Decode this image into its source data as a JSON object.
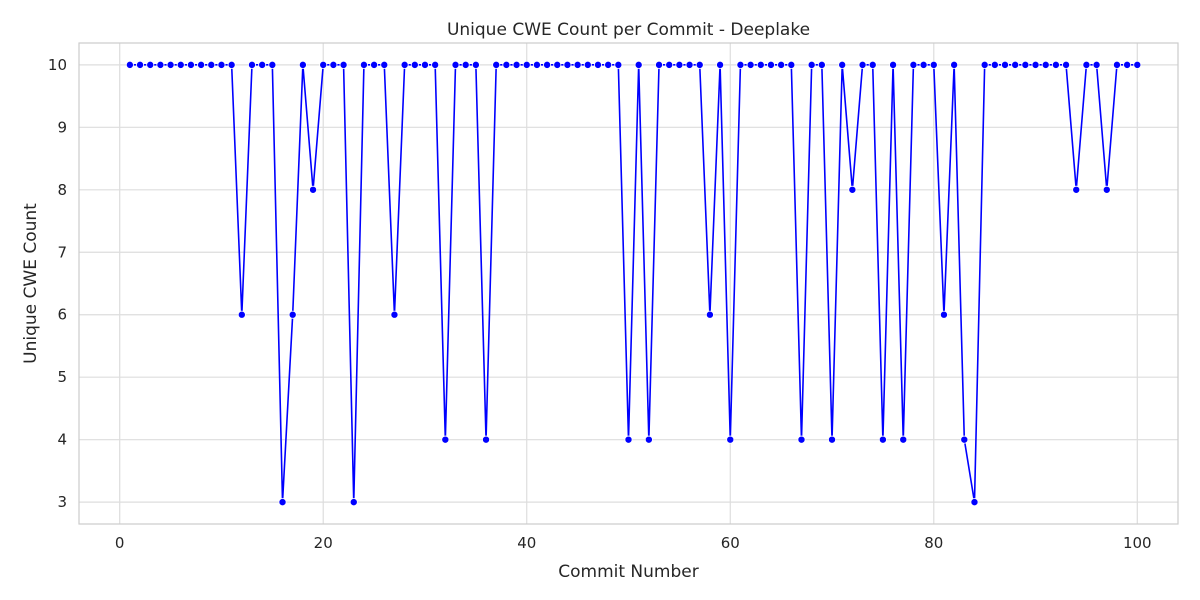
{
  "chart_data": {
    "type": "line",
    "title": "Unique CWE Count per Commit - Deeplake",
    "xlabel": "Commit Number",
    "ylabel": "Unique CWE Count",
    "xlim": [
      -4,
      104
    ],
    "ylim": [
      2.65,
      10.35
    ],
    "xticks": [
      0,
      20,
      40,
      60,
      80,
      100
    ],
    "yticks": [
      3,
      4,
      5,
      6,
      7,
      8,
      9,
      10
    ],
    "grid": true,
    "legend": "none",
    "series": [
      {
        "color": "#0000ff",
        "marker": "circle",
        "x": [
          1,
          2,
          3,
          4,
          5,
          6,
          7,
          8,
          9,
          10,
          11,
          12,
          13,
          14,
          15,
          16,
          17,
          18,
          19,
          20,
          21,
          22,
          23,
          24,
          25,
          26,
          27,
          28,
          29,
          30,
          31,
          32,
          33,
          34,
          35,
          36,
          37,
          38,
          39,
          40,
          41,
          42,
          43,
          44,
          45,
          46,
          47,
          48,
          49,
          50,
          51,
          52,
          53,
          54,
          55,
          56,
          57,
          58,
          59,
          60,
          61,
          62,
          63,
          64,
          65,
          66,
          67,
          68,
          69,
          70,
          71,
          72,
          73,
          74,
          75,
          76,
          77,
          78,
          79,
          80,
          81,
          82,
          83,
          84,
          85,
          86,
          87,
          88,
          89,
          90,
          91,
          92,
          93,
          94,
          95,
          96,
          97,
          98,
          99,
          100
        ],
        "y": [
          10,
          10,
          10,
          10,
          10,
          10,
          10,
          10,
          10,
          10,
          10,
          6,
          10,
          10,
          10,
          3,
          6,
          10,
          8,
          10,
          10,
          10,
          3,
          10,
          10,
          10,
          6,
          10,
          10,
          10,
          10,
          4,
          10,
          10,
          10,
          4,
          10,
          10,
          10,
          10,
          10,
          10,
          10,
          10,
          10,
          10,
          10,
          10,
          10,
          4,
          10,
          4,
          10,
          10,
          10,
          10,
          10,
          6,
          10,
          4,
          10,
          10,
          10,
          10,
          10,
          10,
          4,
          10,
          10,
          4,
          10,
          8,
          10,
          10,
          4,
          10,
          4,
          10,
          10,
          10,
          6,
          10,
          4,
          3,
          10,
          10,
          10,
          10,
          10,
          10,
          10,
          10,
          10,
          8,
          10,
          10,
          8,
          10,
          10,
          10
        ]
      }
    ]
  }
}
